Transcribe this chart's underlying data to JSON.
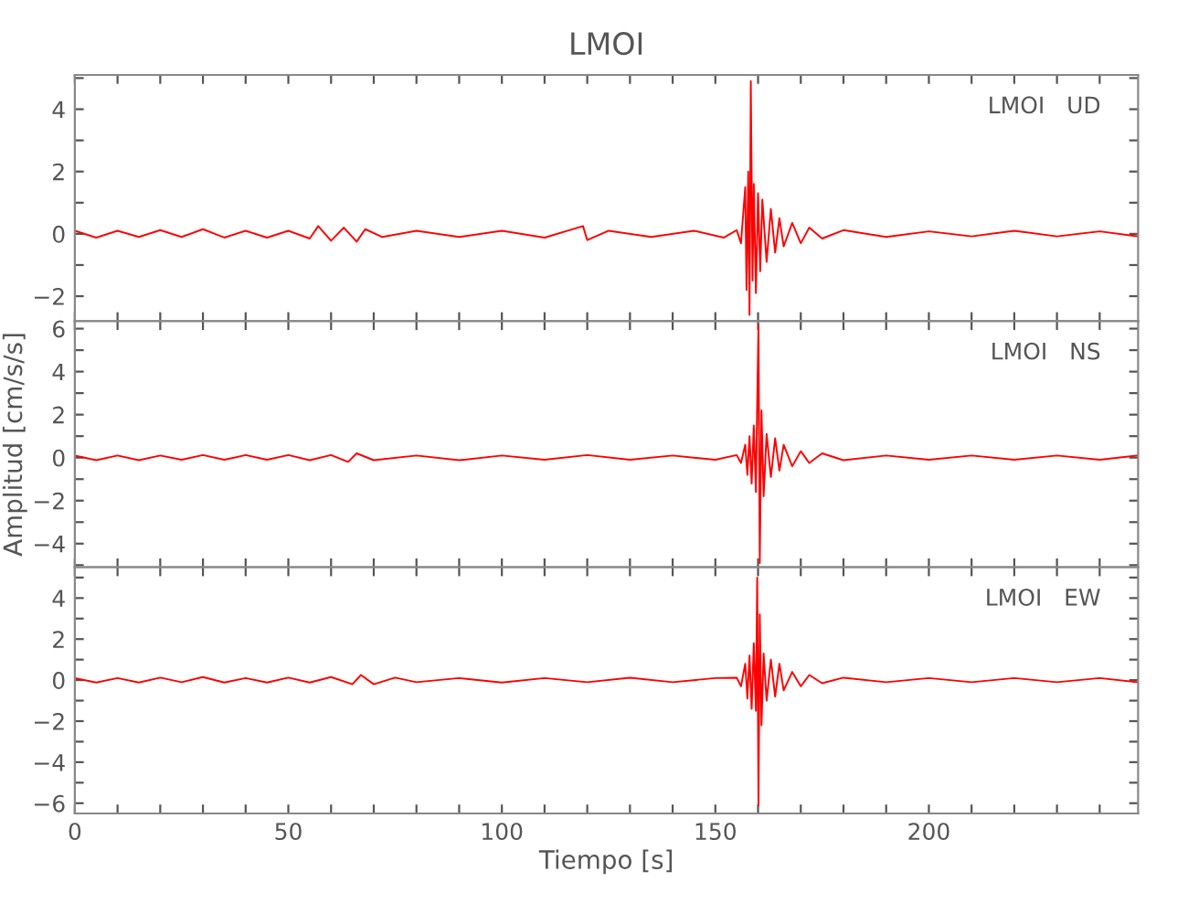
{
  "chart_data": [
    {
      "type": "line",
      "title": "LMOI",
      "annotations": [
        "LMOI   UD"
      ],
      "xlim": [
        0,
        249
      ],
      "ylim": [
        -2.8,
        5.1
      ],
      "tick_labels": "y",
      "grid": false,
      "legend": false,
      "xticks": [
        0,
        {
          "value": 10,
          "label": null
        },
        {
          "value": 20,
          "label": null
        },
        {
          "value": 30,
          "label": null
        },
        {
          "value": 40,
          "label": null
        },
        50,
        {
          "value": 60,
          "label": null
        },
        {
          "value": 70,
          "label": null
        },
        {
          "value": 80,
          "label": null
        },
        {
          "value": 90,
          "label": null
        },
        100,
        {
          "value": 110,
          "label": null
        },
        {
          "value": 120,
          "label": null
        },
        {
          "value": 130,
          "label": null
        },
        {
          "value": 140,
          "label": null
        },
        150,
        {
          "value": 160,
          "label": null
        },
        {
          "value": 170,
          "label": null
        },
        {
          "value": 180,
          "label": null
        },
        {
          "value": 190,
          "label": null
        },
        200,
        {
          "value": 210,
          "label": null
        },
        {
          "value": 220,
          "label": null
        },
        {
          "value": 230,
          "label": null
        },
        {
          "value": 240,
          "label": null
        }
      ],
      "yticks": [
        {
          "value": -2,
          "label": "−2"
        },
        {
          "value": -1,
          "label": null
        },
        0,
        {
          "value": 1,
          "label": null
        },
        2,
        {
          "value": 3,
          "label": null
        },
        4,
        {
          "value": 5,
          "label": null
        }
      ],
      "series": [
        {
          "color": "#ff0000",
          "x": [
            0,
            5,
            10,
            15,
            20,
            25,
            30,
            35,
            40,
            45,
            50,
            55,
            57,
            60,
            63,
            66,
            68,
            72,
            80,
            90,
            100,
            110,
            119,
            120,
            125,
            135,
            145,
            152,
            155,
            156,
            157,
            157.3,
            157.7,
            158,
            158.3,
            158.7,
            159,
            159.5,
            160,
            160.5,
            161,
            162,
            163,
            164,
            165,
            166,
            168,
            170,
            172,
            175,
            180,
            190,
            200,
            210,
            220,
            230,
            240,
            249
          ],
          "values": [
            0.1,
            -0.12,
            0.1,
            -0.1,
            0.12,
            -0.1,
            0.15,
            -0.12,
            0.1,
            -0.12,
            0.1,
            -0.15,
            0.25,
            -0.22,
            0.2,
            -0.25,
            0.15,
            -0.1,
            0.1,
            -0.1,
            0.1,
            -0.12,
            0.25,
            -0.2,
            0.1,
            -0.1,
            0.1,
            -0.12,
            0.12,
            -0.3,
            1.5,
            -1.8,
            2.0,
            -2.6,
            4.9,
            -1.5,
            1.6,
            -1.9,
            1.3,
            -1.2,
            1.1,
            -0.9,
            0.8,
            -0.6,
            0.5,
            -0.4,
            0.35,
            -0.3,
            0.2,
            -0.15,
            0.12,
            -0.1,
            0.08,
            -0.08,
            0.1,
            -0.08,
            0.08,
            -0.08
          ]
        }
      ]
    },
    {
      "type": "line",
      "ylabel": "Amplitud [cm/s/s]",
      "annotations": [
        "LMOI   NS"
      ],
      "xlim": [
        0,
        249
      ],
      "ylim": [
        -5.1,
        6.35
      ],
      "tick_labels": "y",
      "grid": false,
      "legend": false,
      "xticks": [
        0,
        {
          "value": 10,
          "label": null
        },
        {
          "value": 20,
          "label": null
        },
        {
          "value": 30,
          "label": null
        },
        {
          "value": 40,
          "label": null
        },
        50,
        {
          "value": 60,
          "label": null
        },
        {
          "value": 70,
          "label": null
        },
        {
          "value": 80,
          "label": null
        },
        {
          "value": 90,
          "label": null
        },
        100,
        {
          "value": 110,
          "label": null
        },
        {
          "value": 120,
          "label": null
        },
        {
          "value": 130,
          "label": null
        },
        {
          "value": 140,
          "label": null
        },
        150,
        {
          "value": 160,
          "label": null
        },
        {
          "value": 170,
          "label": null
        },
        {
          "value": 180,
          "label": null
        },
        {
          "value": 190,
          "label": null
        },
        200,
        {
          "value": 210,
          "label": null
        },
        {
          "value": 220,
          "label": null
        },
        {
          "value": 230,
          "label": null
        },
        {
          "value": 240,
          "label": null
        }
      ],
      "yticks": [
        {
          "value": -5,
          "label": null
        },
        {
          "value": -4,
          "label": "−4"
        },
        {
          "value": -3,
          "label": null
        },
        {
          "value": -2,
          "label": "−2"
        },
        {
          "value": -1,
          "label": null
        },
        0,
        {
          "value": 1,
          "label": null
        },
        2,
        {
          "value": 3,
          "label": null
        },
        4,
        {
          "value": 5,
          "label": null
        },
        6
      ],
      "series": [
        {
          "color": "#ff0000",
          "x": [
            0,
            5,
            10,
            15,
            20,
            25,
            30,
            35,
            40,
            45,
            50,
            55,
            60,
            64,
            66,
            70,
            80,
            90,
            100,
            110,
            120,
            130,
            140,
            150,
            155,
            156,
            157,
            157.5,
            158,
            158.5,
            159,
            159.5,
            159.8,
            160.1,
            160.4,
            160.8,
            161.3,
            162,
            163,
            164,
            165,
            166,
            168,
            170,
            172,
            175,
            180,
            190,
            200,
            210,
            220,
            230,
            240,
            249
          ],
          "values": [
            0.1,
            -0.12,
            0.1,
            -0.12,
            0.1,
            -0.1,
            0.12,
            -0.1,
            0.12,
            -0.1,
            0.12,
            -0.12,
            0.12,
            -0.2,
            0.2,
            -0.12,
            0.1,
            -0.12,
            0.1,
            -0.1,
            0.12,
            -0.1,
            0.1,
            -0.1,
            0.12,
            -0.25,
            0.6,
            -0.8,
            1.0,
            -1.2,
            1.5,
            -1.6,
            2.5,
            6.2,
            -4.9,
            2.2,
            -1.8,
            1.1,
            -0.9,
            0.9,
            -0.6,
            0.6,
            -0.4,
            0.3,
            -0.25,
            0.2,
            -0.12,
            0.1,
            -0.1,
            0.1,
            -0.1,
            0.1,
            -0.1,
            0.1
          ]
        }
      ]
    },
    {
      "type": "line",
      "xlabel": "Tiempo [s]",
      "annotations": [
        "LMOI   EW"
      ],
      "xlim": [
        0,
        249
      ],
      "ylim": [
        -6.5,
        5.5
      ],
      "grid": false,
      "legend": false,
      "xticks": [
        0,
        {
          "value": 10,
          "label": null
        },
        {
          "value": 20,
          "label": null
        },
        {
          "value": 30,
          "label": null
        },
        {
          "value": 40,
          "label": null
        },
        50,
        {
          "value": 60,
          "label": null
        },
        {
          "value": 70,
          "label": null
        },
        {
          "value": 80,
          "label": null
        },
        {
          "value": 90,
          "label": null
        },
        100,
        {
          "value": 110,
          "label": null
        },
        {
          "value": 120,
          "label": null
        },
        {
          "value": 130,
          "label": null
        },
        {
          "value": 140,
          "label": null
        },
        150,
        {
          "value": 160,
          "label": null
        },
        {
          "value": 170,
          "label": null
        },
        {
          "value": 180,
          "label": null
        },
        {
          "value": 190,
          "label": null
        },
        200,
        {
          "value": 210,
          "label": null
        },
        {
          "value": 220,
          "label": null
        },
        {
          "value": 230,
          "label": null
        },
        {
          "value": 240,
          "label": null
        }
      ],
      "yticks": [
        {
          "value": -6,
          "label": "−6"
        },
        {
          "value": -5,
          "label": null
        },
        {
          "value": -4,
          "label": "−4"
        },
        {
          "value": -3,
          "label": null
        },
        {
          "value": -2,
          "label": "−2"
        },
        {
          "value": -1,
          "label": null
        },
        0,
        {
          "value": 1,
          "label": null
        },
        2,
        {
          "value": 3,
          "label": null
        },
        4,
        {
          "value": 5,
          "label": null
        }
      ],
      "series": [
        {
          "color": "#ff0000",
          "x": [
            0,
            5,
            10,
            15,
            20,
            25,
            30,
            35,
            40,
            45,
            50,
            55,
            60,
            65,
            67,
            70,
            75,
            80,
            90,
            100,
            110,
            120,
            130,
            140,
            150,
            155,
            156,
            157,
            157.5,
            158,
            158.5,
            159,
            159.5,
            159.8,
            160.1,
            160.4,
            160.8,
            161.3,
            162,
            163,
            164,
            165,
            166,
            168,
            170,
            172,
            175,
            180,
            190,
            200,
            210,
            220,
            230,
            240,
            249
          ],
          "values": [
            0.1,
            -0.12,
            0.1,
            -0.12,
            0.12,
            -0.1,
            0.15,
            -0.12,
            0.1,
            -0.12,
            0.12,
            -0.12,
            0.15,
            -0.2,
            0.25,
            -0.2,
            0.12,
            -0.1,
            0.1,
            -0.12,
            0.1,
            -0.1,
            0.12,
            -0.1,
            0.1,
            0.12,
            -0.3,
            0.8,
            -0.9,
            1.2,
            -1.4,
            1.8,
            -1.5,
            5.0,
            -6.1,
            3.2,
            -2.2,
            1.3,
            -1.0,
            1.0,
            -0.8,
            0.8,
            -0.5,
            0.4,
            -0.3,
            0.25,
            -0.15,
            0.12,
            -0.1,
            0.1,
            -0.1,
            0.1,
            -0.1,
            0.1,
            -0.1
          ]
        }
      ]
    }
  ]
}
